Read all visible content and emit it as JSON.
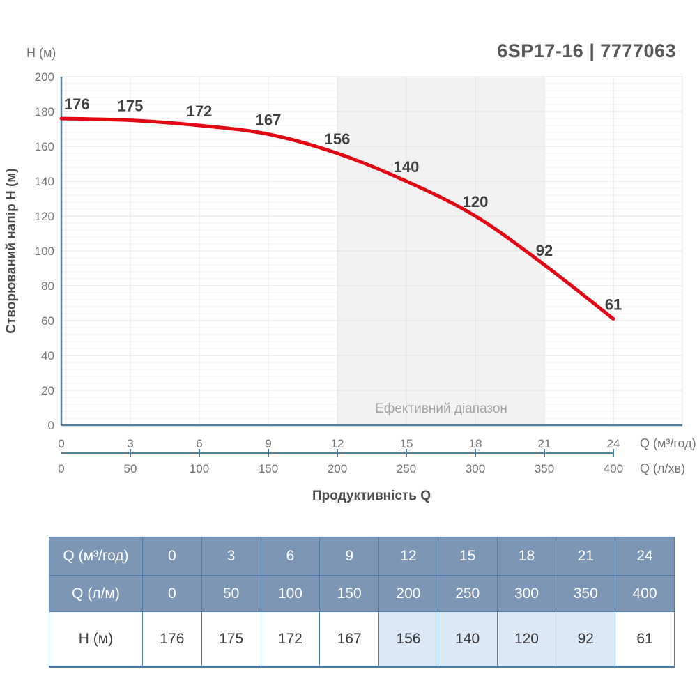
{
  "title": "6SP17-16 | 7777063",
  "chart": {
    "y_axis_unit": "H (м)",
    "y_axis_label": "Створюваний напір H (м)",
    "x_axis_label": "Продуктивність Q",
    "x_unit_primary": "Q (м³/год)",
    "x_unit_secondary": "Q (л/хв)",
    "band_label": "Ефективний діапазон"
  },
  "chart_data": {
    "type": "line",
    "title": "6SP17-16 | 7777063",
    "xlabel": "Продуктивність Q",
    "ylabel": "Створюваний напір H (м)",
    "x": [
      0,
      3,
      6,
      9,
      12,
      15,
      18,
      21,
      24
    ],
    "x_secondary": [
      0,
      50,
      100,
      150,
      200,
      250,
      300,
      350,
      400
    ],
    "series": [
      {
        "name": "H (м)",
        "values": [
          176,
          175,
          172,
          167,
          156,
          140,
          120,
          92,
          61
        ]
      }
    ],
    "xlim": [
      0,
      27
    ],
    "ylim": [
      0,
      200
    ],
    "ytick_step": 20,
    "ytick_minor_step": 4,
    "xtick_step": 3,
    "effective_range_x": [
      12,
      21
    ],
    "grid": true,
    "legend": false
  },
  "table": {
    "rows": [
      {
        "label": "Q (м³/год)",
        "values": [
          "0",
          "3",
          "6",
          "9",
          "12",
          "15",
          "18",
          "21",
          "24"
        ],
        "header": true,
        "highlight": []
      },
      {
        "label": "Q (л/м)",
        "values": [
          "0",
          "50",
          "100",
          "150",
          "200",
          "250",
          "300",
          "350",
          "400"
        ],
        "header": true,
        "highlight": []
      },
      {
        "label": "H (м)",
        "values": [
          "176",
          "175",
          "172",
          "167",
          "156",
          "140",
          "120",
          "92",
          "61"
        ],
        "header": false,
        "highlight": [
          4,
          5,
          6,
          7
        ]
      }
    ]
  },
  "colors": {
    "curve": "#e30613",
    "axis": "#50809f",
    "grid_major": "#e3e3e3",
    "grid_minor": "#f1f1f1",
    "band": "#f2f2f2",
    "table_header_bg": "#7e96b5",
    "table_border": "#4d7ca9",
    "table_highlight": "#dbe9f7",
    "title_color": "#57585a"
  }
}
